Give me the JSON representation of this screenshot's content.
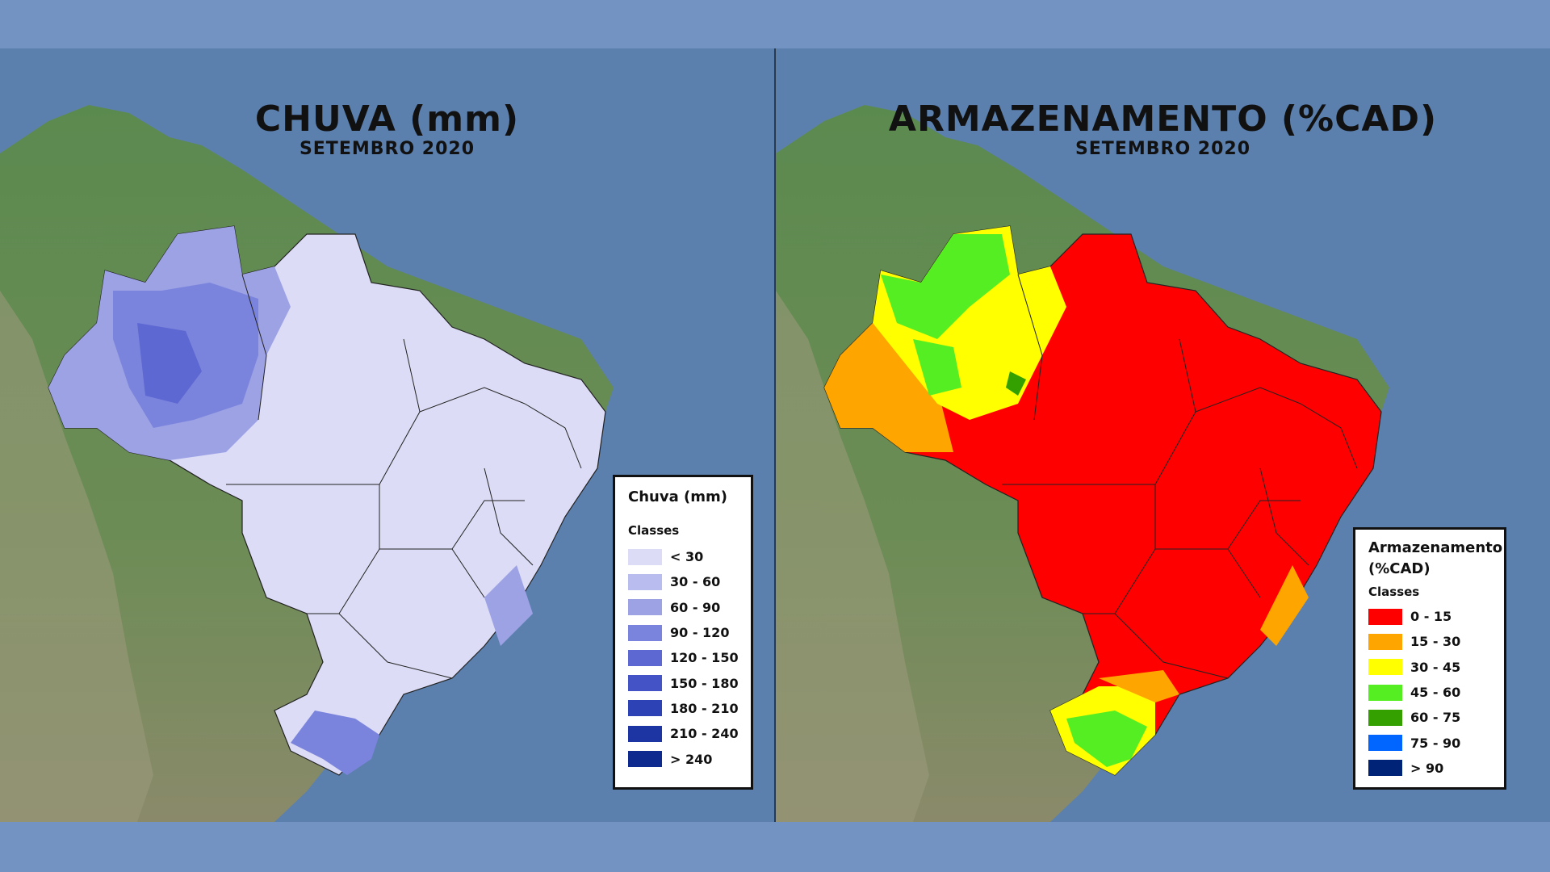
{
  "left": {
    "title": "CHUVA (mm)",
    "subtitle": "SETEMBRO 2020",
    "legend": {
      "title": "Chuva (mm)",
      "subtitle": "Classes",
      "items": [
        {
          "label": "< 30",
          "color": "#dcdcf6"
        },
        {
          "label": "30 - 60",
          "color": "#b9bcef"
        },
        {
          "label": "60 - 90",
          "color": "#9da2e5"
        },
        {
          "label": "90 - 120",
          "color": "#7b84dc"
        },
        {
          "label": "120 - 150",
          "color": "#5d68d2"
        },
        {
          "label": "150 - 180",
          "color": "#4453c6"
        },
        {
          "label": "180 - 210",
          "color": "#2d42b5"
        },
        {
          "label": "210 - 240",
          "color": "#1d35a2"
        },
        {
          "label": "> 240",
          "color": "#0f2a8f"
        }
      ]
    }
  },
  "right": {
    "title": "ARMAZENAMENTO (%CAD)",
    "subtitle": "SETEMBRO 2020",
    "legend": {
      "title_line1": "Armazenamento",
      "title_line2": "(%CAD)",
      "subtitle": "Classes",
      "items": [
        {
          "label": "0 - 15",
          "color": "#ff0000"
        },
        {
          "label": "15 - 30",
          "color": "#ffa500"
        },
        {
          "label": "30 - 45",
          "color": "#ffff00"
        },
        {
          "label": "45 - 60",
          "color": "#55ee22"
        },
        {
          "label": "60 - 75",
          "color": "#33a000"
        },
        {
          "label": "75 - 90",
          "color": "#0066ff"
        },
        {
          "label": "> 90",
          "color": "#002277"
        }
      ]
    }
  },
  "colors": {
    "background": "#7393c2",
    "ocean": "#5c80ae",
    "land": "#4f7a4a"
  }
}
